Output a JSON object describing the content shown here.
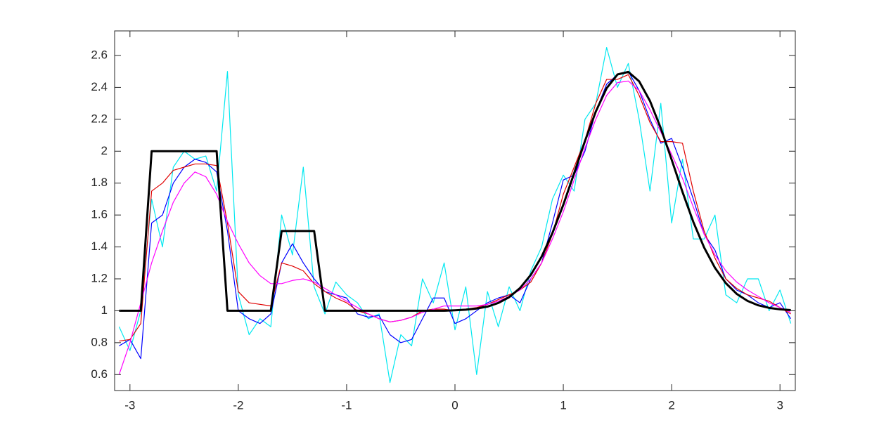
{
  "chart_data": {
    "type": "line",
    "x": [
      -3.1,
      -3.0,
      -2.9,
      -2.8,
      -2.7,
      -2.6,
      -2.5,
      -2.4,
      -2.3,
      -2.2,
      -2.1,
      -2.0,
      -1.9,
      -1.8,
      -1.7,
      -1.6,
      -1.5,
      -1.4,
      -1.3,
      -1.2,
      -1.1,
      -1.0,
      -0.9,
      -0.8,
      -0.7,
      -0.6,
      -0.5,
      -0.4,
      -0.3,
      -0.2,
      -0.1,
      0,
      0.1,
      0.2,
      0.3,
      0.4,
      0.5,
      0.6,
      0.7,
      0.8,
      0.9,
      1.0,
      1.1,
      1.2,
      1.3,
      1.4,
      1.5,
      1.6,
      1.7,
      1.8,
      1.9,
      2.0,
      2.1,
      2.2,
      2.3,
      2.4,
      2.5,
      2.6,
      2.7,
      2.8,
      2.9,
      3.0,
      3.1
    ],
    "series": [
      {
        "color": "#00e8f0",
        "values": [
          0.9,
          0.75,
          1.0,
          1.7,
          1.4,
          1.9,
          2.0,
          1.95,
          1.97,
          1.75,
          2.5,
          1.1,
          0.85,
          0.95,
          0.9,
          1.6,
          1.35,
          1.9,
          1.15,
          0.98,
          1.18,
          1.1,
          1.05,
          0.95,
          0.98,
          0.55,
          0.85,
          0.78,
          1.2,
          1.05,
          1.3,
          0.88,
          1.15,
          0.6,
          1.12,
          0.9,
          1.15,
          1.0,
          1.25,
          1.4,
          1.7,
          1.85,
          1.75,
          2.2,
          2.3,
          2.65,
          2.4,
          2.55,
          2.2,
          1.75,
          2.3,
          1.55,
          1.95,
          1.45,
          1.45,
          1.6,
          1.1,
          1.05,
          1.2,
          1.2,
          1.0,
          1.13,
          0.92
        ]
      },
      {
        "color": "#0000ff",
        "values": [
          0.78,
          0.82,
          0.7,
          1.55,
          1.6,
          1.8,
          1.9,
          1.95,
          1.93,
          1.87,
          1.5,
          1.0,
          0.95,
          0.92,
          0.98,
          1.3,
          1.42,
          1.3,
          1.2,
          1.12,
          1.1,
          1.08,
          0.98,
          0.96,
          0.97,
          0.85,
          0.8,
          0.82,
          0.95,
          1.08,
          1.08,
          0.92,
          0.95,
          1.0,
          1.05,
          1.08,
          1.1,
          1.05,
          1.2,
          1.3,
          1.55,
          1.82,
          1.85,
          2.0,
          2.25,
          2.42,
          2.48,
          2.5,
          2.38,
          2.2,
          2.05,
          2.08,
          1.9,
          1.7,
          1.48,
          1.38,
          1.2,
          1.13,
          1.1,
          1.05,
          1.02,
          1.05,
          0.95
        ]
      },
      {
        "color": "#e00000",
        "values": [
          0.81,
          0.82,
          0.92,
          1.75,
          1.8,
          1.88,
          1.9,
          1.92,
          1.92,
          1.91,
          1.55,
          1.12,
          1.05,
          1.04,
          1.03,
          1.3,
          1.28,
          1.25,
          1.17,
          1.12,
          1.08,
          1.05,
          1.0,
          0.98,
          0.95,
          0.93,
          0.94,
          0.96,
          1.0,
          1.01,
          1.01,
          1.0,
          1.01,
          1.02,
          1.04,
          1.07,
          1.1,
          1.13,
          1.18,
          1.3,
          1.48,
          1.73,
          1.9,
          2.07,
          2.3,
          2.45,
          2.45,
          2.48,
          2.35,
          2.18,
          2.06,
          2.06,
          2.05,
          1.75,
          1.5,
          1.33,
          1.2,
          1.14,
          1.1,
          1.08,
          1.06,
          1.02,
          0.98
        ]
      },
      {
        "color": "#ff00ff",
        "values": [
          0.6,
          0.8,
          1.05,
          1.3,
          1.5,
          1.68,
          1.8,
          1.87,
          1.84,
          1.73,
          1.56,
          1.42,
          1.3,
          1.22,
          1.17,
          1.17,
          1.19,
          1.2,
          1.18,
          1.14,
          1.1,
          1.06,
          1.02,
          0.98,
          0.95,
          0.93,
          0.94,
          0.96,
          0.99,
          1.01,
          1.03,
          1.03,
          1.03,
          1.03,
          1.04,
          1.06,
          1.09,
          1.13,
          1.2,
          1.3,
          1.45,
          1.62,
          1.82,
          2.02,
          2.2,
          2.35,
          2.43,
          2.44,
          2.38,
          2.26,
          2.12,
          1.98,
          1.83,
          1.65,
          1.48,
          1.35,
          1.25,
          1.18,
          1.13,
          1.09,
          1.05,
          1.02,
          0.99
        ]
      },
      {
        "color": "#000000",
        "values": [
          1,
          1,
          1,
          2,
          2,
          2,
          2,
          2,
          2,
          2,
          1,
          1,
          1,
          1,
          1,
          1.5,
          1.5,
          1.5,
          1.5,
          1,
          1,
          1,
          1,
          1,
          1,
          1,
          1,
          1,
          1,
          1,
          1,
          1.003,
          1.007,
          1.014,
          1.026,
          1.049,
          1.085,
          1.142,
          1.225,
          1.339,
          1.488,
          1.664,
          1.862,
          2.064,
          2.249,
          2.395,
          2.481,
          2.497,
          2.438,
          2.315,
          2.144,
          1.947,
          1.745,
          1.557,
          1.396,
          1.269,
          1.173,
          1.106,
          1.062,
          1.034,
          1.018,
          1.009,
          1.004
        ]
      }
    ],
    "xlim": [
      -3.14159,
      3.14159
    ],
    "xticks": [
      -3,
      -2,
      -1,
      0,
      1,
      2,
      3
    ],
    "ylim": [
      0.5,
      2.754
    ],
    "yticks": [
      0.6,
      0.8,
      1,
      1.2,
      1.4,
      1.6,
      1.8,
      2,
      2.2,
      2.4,
      2.6
    ]
  }
}
